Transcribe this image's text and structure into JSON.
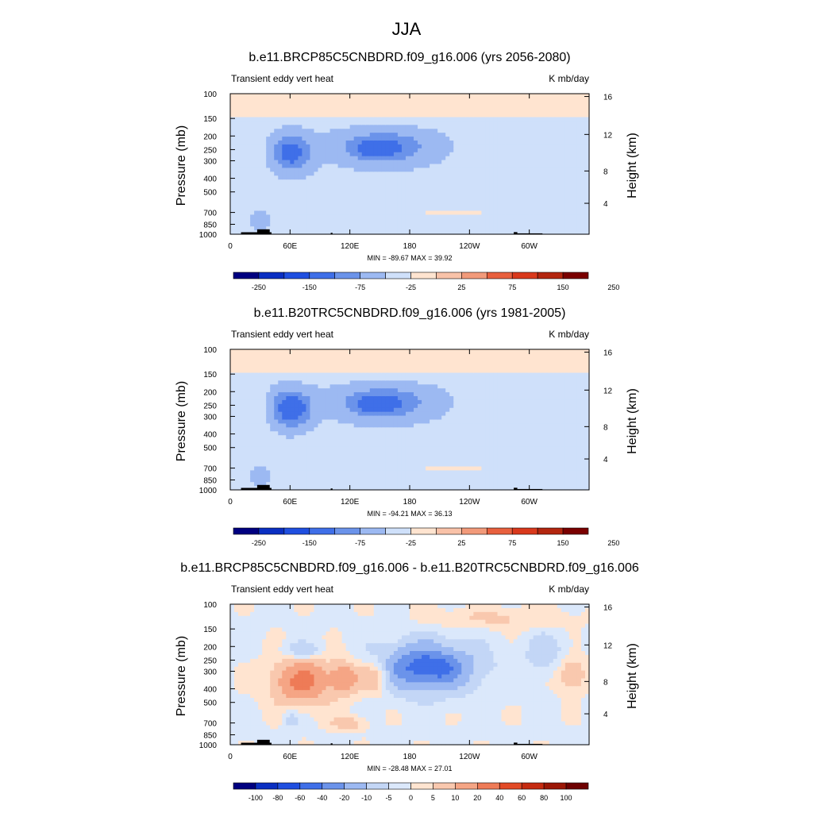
{
  "figure": {
    "title": "JJA"
  },
  "chart_data": [
    {
      "type": "heatmap",
      "title": "b.e11.BRCP85C5CNBDRD.f09_g16.006 (yrs 2056-2080)",
      "left_label": "Transient eddy vert heat",
      "right_label": "K mb/day",
      "xlabel": "",
      "ylabel": "Pressure (mb)",
      "ylabel_right": "Height (km)",
      "x_ticks": [
        "0",
        "60E",
        "120E",
        "180",
        "120W",
        "60W"
      ],
      "y_ticks": [
        "100",
        "150",
        "200",
        "250",
        "300",
        "400",
        "500",
        "700",
        "850",
        "1000"
      ],
      "y_ticks_right": [
        "16",
        "12",
        "8",
        "4"
      ],
      "stats": "MIN = -89.67  MAX =  39.92",
      "min": -89.67,
      "max": 39.92,
      "colorbar_labels": [
        "-250",
        "-150",
        "-75",
        "-25",
        "25",
        "75",
        "150",
        "250"
      ]
    },
    {
      "type": "heatmap",
      "title": "b.e11.B20TRC5CNBDRD.f09_g16.006 (yrs 1981-2005)",
      "left_label": "Transient eddy vert heat",
      "right_label": "K mb/day",
      "xlabel": "",
      "ylabel": "Pressure (mb)",
      "ylabel_right": "Height (km)",
      "x_ticks": [
        "0",
        "60E",
        "120E",
        "180",
        "120W",
        "60W"
      ],
      "y_ticks": [
        "100",
        "150",
        "200",
        "250",
        "300",
        "400",
        "500",
        "700",
        "850",
        "1000"
      ],
      "y_ticks_right": [
        "16",
        "12",
        "8",
        "4"
      ],
      "stats": "MIN = -94.21  MAX =  36.13",
      "min": -94.21,
      "max": 36.13,
      "colorbar_labels": [
        "-250",
        "-150",
        "-75",
        "-25",
        "25",
        "75",
        "150",
        "250"
      ]
    },
    {
      "type": "heatmap",
      "title": "b.e11.BRCP85C5CNBDRD.f09_g16.006 - b.e11.B20TRC5CNBDRD.f09_g16.006",
      "left_label": "Transient eddy vert heat",
      "right_label": "K mb/day",
      "xlabel": "",
      "ylabel": "Pressure (mb)",
      "ylabel_right": "Height (km)",
      "x_ticks": [
        "0",
        "60E",
        "120E",
        "180",
        "120W",
        "60W"
      ],
      "y_ticks": [
        "100",
        "150",
        "200",
        "250",
        "300",
        "400",
        "500",
        "700",
        "850",
        "1000"
      ],
      "y_ticks_right": [
        "16",
        "12",
        "8",
        "4"
      ],
      "stats": "MIN = -28.48  MAX =  27.01",
      "min": -28.48,
      "max": 27.01,
      "colorbar_labels": [
        "-100",
        "-80",
        "-60",
        "-40",
        "-20",
        "-10",
        "-5",
        "0",
        "5",
        "10",
        "20",
        "40",
        "60",
        "80",
        "100"
      ]
    }
  ],
  "colors": {
    "main_palette": [
      "#000080",
      "#0a2fc2",
      "#1f4fe0",
      "#3f6fe8",
      "#6b93ea",
      "#9cb9f2",
      "#cfe0fa",
      "#ffe4d0",
      "#f9c2a8",
      "#f29a7a",
      "#e8603e",
      "#d9391c",
      "#b3260f",
      "#7a0000"
    ],
    "diff_palette": [
      "#000080",
      "#0a2fc2",
      "#1f4fe0",
      "#3f6fe8",
      "#6b93ea",
      "#9cb9f2",
      "#c3d6f6",
      "#dbe8fb",
      "#ffe4d0",
      "#f9c8ae",
      "#f5a585",
      "#ee7b57",
      "#e24a26",
      "#c52a10",
      "#9b1605",
      "#6e0000"
    ],
    "topography": "#000000"
  }
}
